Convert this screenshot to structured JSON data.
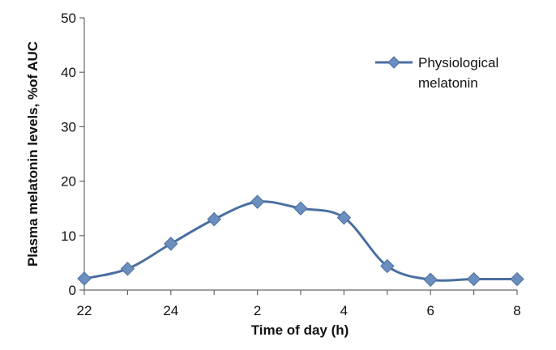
{
  "chart_data": {
    "type": "line",
    "title": "",
    "xlabel": "Time of day (h)",
    "ylabel": "Plasma melatonin levels, %of AUC",
    "ylim": [
      0,
      50
    ],
    "yticks": [
      "0",
      "10",
      "20",
      "30",
      "40",
      "50"
    ],
    "xticks": [
      "22",
      "24",
      "2",
      "4",
      "6",
      "8"
    ],
    "grid": false,
    "legend": {
      "position": "top-right",
      "lines": [
        "Physiological",
        "melatonin"
      ]
    },
    "categories": [
      "22",
      "23",
      "24",
      "1",
      "2",
      "3",
      "4",
      "5",
      "6",
      "7",
      "8"
    ],
    "series": [
      {
        "name": "Physiological melatonin",
        "color": "#4A6FA0",
        "marker": "diamond",
        "smooth": true,
        "values": [
          2.1,
          3.9,
          8.5,
          13.0,
          16.2,
          15.0,
          13.3,
          4.4,
          1.9,
          2.0,
          2.0
        ]
      }
    ]
  }
}
